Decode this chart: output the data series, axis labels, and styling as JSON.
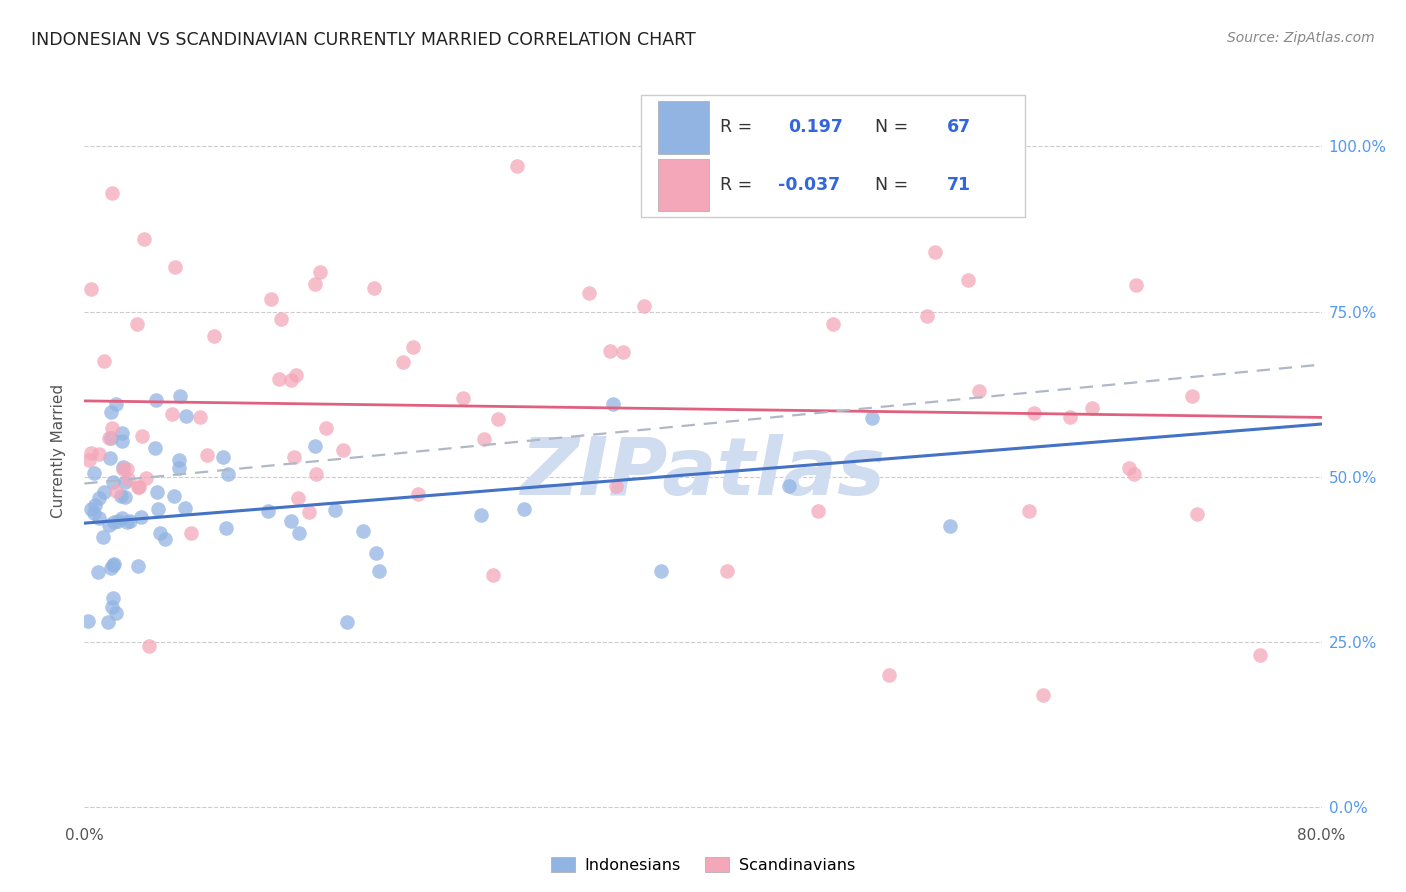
{
  "title": "INDONESIAN VS SCANDINAVIAN CURRENTLY MARRIED CORRELATION CHART",
  "source": "Source: ZipAtlas.com",
  "ylabel": "Currently Married",
  "ytick_labels": [
    "0.0%",
    "25.0%",
    "50.0%",
    "75.0%",
    "100.0%"
  ],
  "ytick_values": [
    0.0,
    0.25,
    0.5,
    0.75,
    1.0
  ],
  "xmin": 0.0,
  "xmax": 0.8,
  "ymin": -0.02,
  "ymax": 1.1,
  "indonesian_color": "#92b4e3",
  "indonesian_edge": "#6090cc",
  "scandinavian_color": "#f4a7b9",
  "scandinavian_edge": "#d07090",
  "trend_blue_color": "#4472c4",
  "trend_pink_color": "#e06080",
  "trend_dashed_color": "#b0b8c8",
  "watermark_color": "#d0dcf0",
  "grid_color": "#cccccc",
  "R_indonesian": 0.197,
  "N_indonesian": 67,
  "R_scandinavian": -0.037,
  "N_scandinavian": 71,
  "ind_trend_x": [
    0.0,
    0.8
  ],
  "ind_trend_y": [
    0.43,
    0.58
  ],
  "scan_trend_x": [
    0.0,
    0.8
  ],
  "scan_trend_y": [
    0.615,
    0.59
  ],
  "dash_trend_x": [
    0.0,
    0.8
  ],
  "dash_trend_y": [
    0.49,
    0.67
  ],
  "legend_R_label": "R = ",
  "legend_N_label": "N = ",
  "text_color": "#333333",
  "blue_num_color": "#3366dd",
  "legend_border": "#cccccc"
}
